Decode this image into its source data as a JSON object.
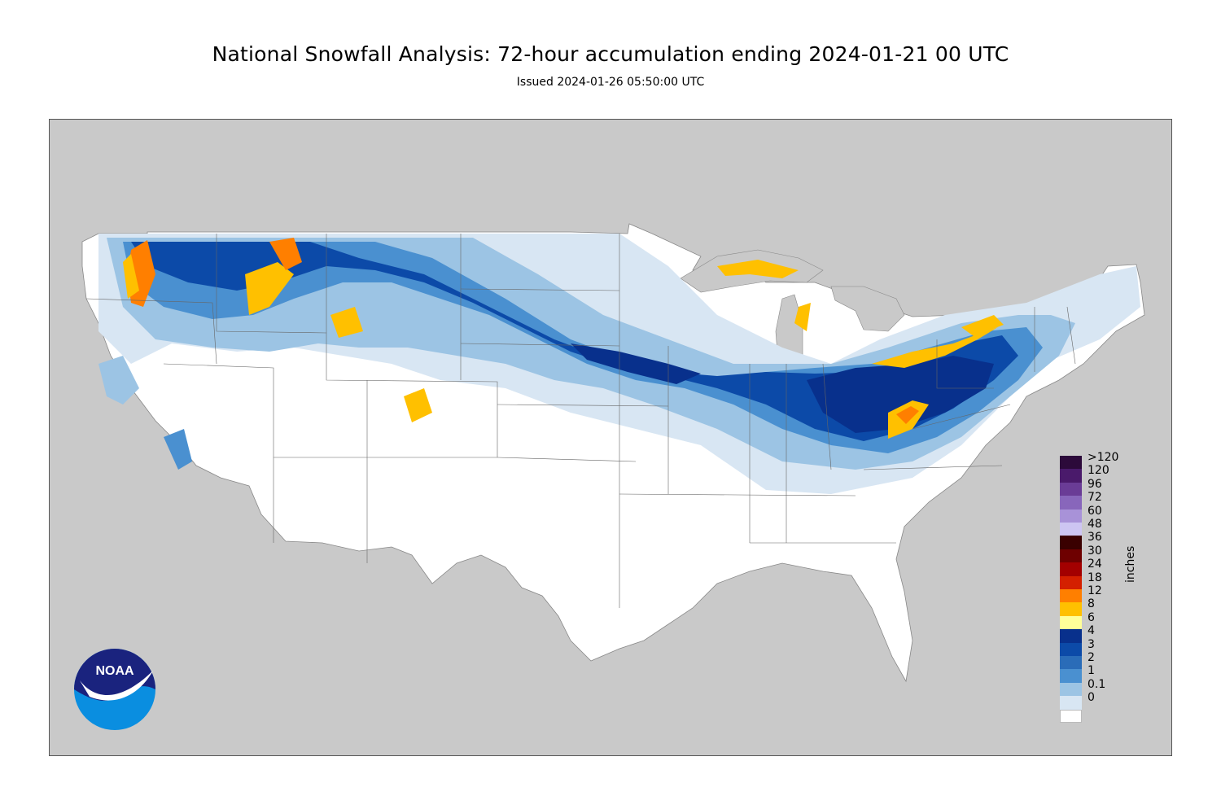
{
  "title": "National Snowfall Analysis: 72-hour accumulation ending 2024-01-21 00 UTC",
  "subtitle": "Issued 2024-01-26 05:50:00 UTC",
  "logo": {
    "text": "NOAA",
    "outer_color": "#1a237e",
    "inner_color": "#0a8ee0"
  },
  "colors": {
    "background_land_outside": "#c9c9c9",
    "us_land": "#ffffff",
    "water": "#c9c9c9"
  },
  "legend": {
    "units": "inches",
    "entries": [
      {
        "label": ">120",
        "color": "#2c0a3a"
      },
      {
        "label": "120",
        "color": "#4a1a6b"
      },
      {
        "label": "96",
        "color": "#6a3c96"
      },
      {
        "label": "72",
        "color": "#8866bb"
      },
      {
        "label": "60",
        "color": "#a892d8"
      },
      {
        "label": "48",
        "color": "#cdc5f2"
      },
      {
        "label": "36",
        "color": "#3a0000"
      },
      {
        "label": "30",
        "color": "#6e0000"
      },
      {
        "label": "24",
        "color": "#a30000"
      },
      {
        "label": "18",
        "color": "#d42000"
      },
      {
        "label": "12",
        "color": "#ff7f00"
      },
      {
        "label": "8",
        "color": "#ffc000"
      },
      {
        "label": "6",
        "color": "#ffff99"
      },
      {
        "label": "4",
        "color": "#08308c"
      },
      {
        "label": "3",
        "color": "#0c4aa8"
      },
      {
        "label": "2",
        "color": "#2a6cb8"
      },
      {
        "label": "1",
        "color": "#4a90d0"
      },
      {
        "label": "0.1",
        "color": "#9cc4e4"
      },
      {
        "label": "0",
        "color": "#d8e6f3"
      },
      {
        "label": "",
        "color": "#ffffff"
      }
    ]
  }
}
